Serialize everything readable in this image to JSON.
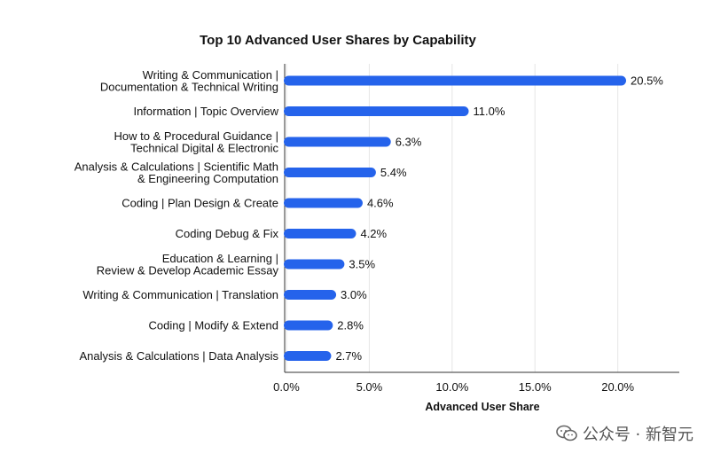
{
  "chart_data": {
    "type": "bar",
    "orientation": "horizontal",
    "title": "Top 10 Advanced User Shares by Capability",
    "xlabel": "Advanced User Share",
    "ylabel": "",
    "xlim": [
      0,
      23
    ],
    "ticks": [
      0,
      5,
      10,
      15,
      20
    ],
    "tick_labels": [
      "0.0%",
      "5.0%",
      "10.0%",
      "15.0%",
      "20.0%"
    ],
    "grid": "vertical",
    "bar_color": "#2563eb",
    "categories": [
      [
        "Writing & Communication |",
        "Documentation & Technical Writing"
      ],
      [
        "Information | Topic Overview"
      ],
      [
        "How to & Procedural Guidance |",
        "Technical Digital & Electronic"
      ],
      [
        "Analysis & Calculations | Scientific Math",
        "& Engineering Computation"
      ],
      [
        "Coding | Plan Design & Create"
      ],
      [
        "Coding Debug & Fix"
      ],
      [
        "Education & Learning |",
        "Review & Develop Academic Essay"
      ],
      [
        "Writing & Communication | Translation"
      ],
      [
        "Coding | Modify & Extend"
      ],
      [
        "Analysis & Calculations | Data Analysis"
      ]
    ],
    "values": [
      20.5,
      11.0,
      6.3,
      5.4,
      4.6,
      4.2,
      3.5,
      3.0,
      2.8,
      2.7
    ],
    "value_labels": [
      "20.5%",
      "11.0%",
      "6.3%",
      "5.4%",
      "4.6%",
      "4.2%",
      "3.5%",
      "3.0%",
      "2.8%",
      "2.7%"
    ]
  },
  "watermark": {
    "text": "公众号 · 新智元",
    "icon": "wechat-icon"
  }
}
